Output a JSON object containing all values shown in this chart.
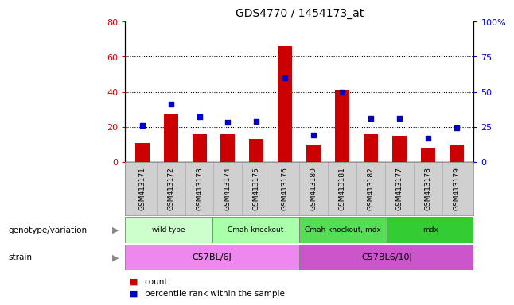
{
  "title": "GDS4770 / 1454173_at",
  "samples": [
    "GSM413171",
    "GSM413172",
    "GSM413173",
    "GSM413174",
    "GSM413175",
    "GSM413176",
    "GSM413180",
    "GSM413181",
    "GSM413182",
    "GSM413177",
    "GSM413178",
    "GSM413179"
  ],
  "counts": [
    11,
    27,
    16,
    16,
    13,
    66,
    10,
    41,
    16,
    15,
    8,
    10
  ],
  "percentiles": [
    26,
    41,
    32,
    28,
    29,
    60,
    19,
    50,
    31,
    31,
    17,
    24
  ],
  "ylim_left": [
    0,
    80
  ],
  "ylim_right": [
    0,
    100
  ],
  "yticks_left": [
    0,
    20,
    40,
    60,
    80
  ],
  "yticks_right": [
    0,
    25,
    50,
    75,
    100
  ],
  "bar_color": "#cc0000",
  "dot_color": "#0000cc",
  "genotype_groups": [
    {
      "label": "wild type",
      "start": 0,
      "end": 3,
      "color": "#ccffcc"
    },
    {
      "label": "Cmah knockout",
      "start": 3,
      "end": 6,
      "color": "#aaffaa"
    },
    {
      "label": "Cmah knockout, mdx",
      "start": 6,
      "end": 9,
      "color": "#55dd55"
    },
    {
      "label": "mdx",
      "start": 9,
      "end": 12,
      "color": "#33cc33"
    }
  ],
  "strain_groups": [
    {
      "label": "C57BL/6J",
      "start": 0,
      "end": 6,
      "color": "#ee88ee"
    },
    {
      "label": "C57BL6/10J",
      "start": 6,
      "end": 12,
      "color": "#cc55cc"
    }
  ],
  "legend_items": [
    {
      "label": "count",
      "color": "#cc0000"
    },
    {
      "label": "percentile rank within the sample",
      "color": "#0000cc"
    }
  ],
  "genotype_label": "genotype/variation",
  "strain_label": "strain",
  "bar_width": 0.5,
  "tick_bg_color": "#d0d0d0",
  "tick_sep_color": "#aaaaaa"
}
